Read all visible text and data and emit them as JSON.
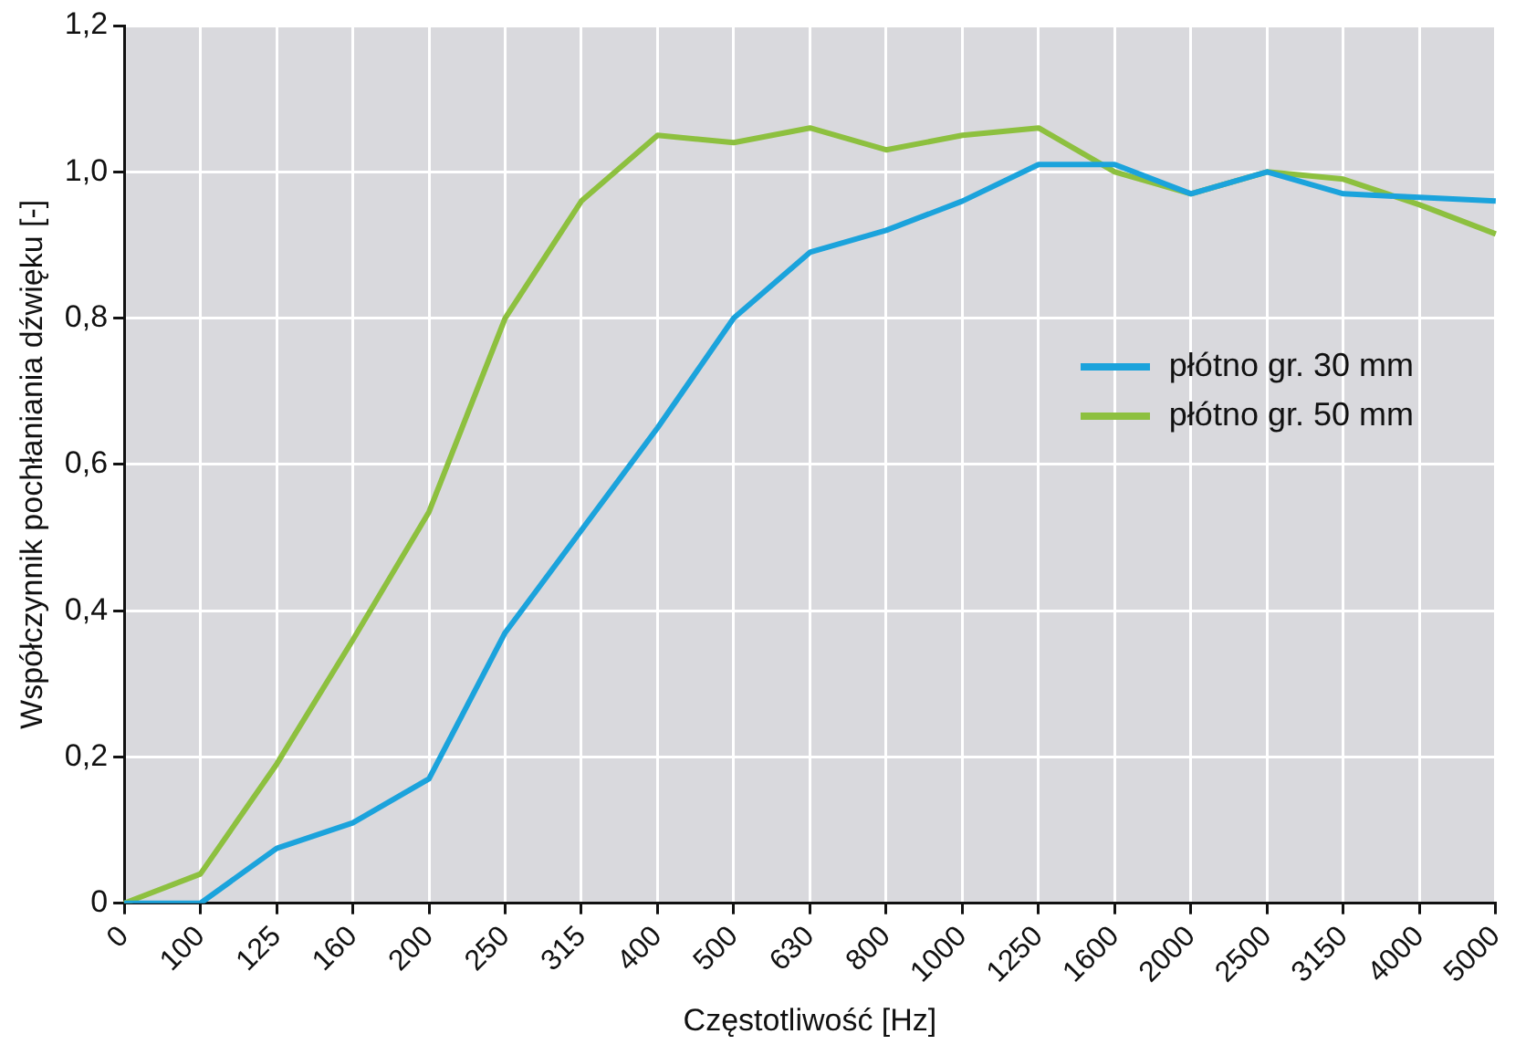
{
  "chart_data": {
    "type": "line",
    "xlabel": "Częstotliwość [Hz]",
    "ylabel": "Współczynnik pochłaniania dźwięku [-]",
    "categories": [
      "0",
      "100",
      "125",
      "160",
      "200",
      "250",
      "315",
      "400",
      "500",
      "630",
      "800",
      "1000",
      "1250",
      "1600",
      "2000",
      "2500",
      "3150",
      "4000",
      "5000"
    ],
    "series": [
      {
        "name": "płótno gr. 30 mm",
        "color": "#1ba3dc",
        "values": [
          0,
          0,
          0.075,
          0.11,
          0.17,
          0.37,
          0.51,
          0.65,
          0.8,
          0.89,
          0.92,
          0.96,
          1.01,
          1.01,
          0.97,
          1.0,
          0.97,
          0.965,
          0.96
        ]
      },
      {
        "name": "płótno gr. 50 mm",
        "color": "#8dc03f",
        "values": [
          0,
          0.04,
          0.19,
          0.36,
          0.535,
          0.8,
          0.96,
          1.05,
          1.04,
          1.06,
          1.03,
          1.05,
          1.06,
          1.0,
          0.97,
          1.0,
          0.99,
          0.955,
          0.915
        ]
      }
    ],
    "ylim": [
      0,
      1.2
    ],
    "yticks": [
      {
        "value": 0,
        "label": "0"
      },
      {
        "value": 0.2,
        "label": "0,2"
      },
      {
        "value": 0.4,
        "label": "0,4"
      },
      {
        "value": 0.6,
        "label": "0,6"
      },
      {
        "value": 0.8,
        "label": "0,8"
      },
      {
        "value": 1.0,
        "label": "1,0"
      },
      {
        "value": 1.2,
        "label": "1,2"
      }
    ],
    "grid": true,
    "legend": "right",
    "marker": "none",
    "line_style": "solid"
  }
}
